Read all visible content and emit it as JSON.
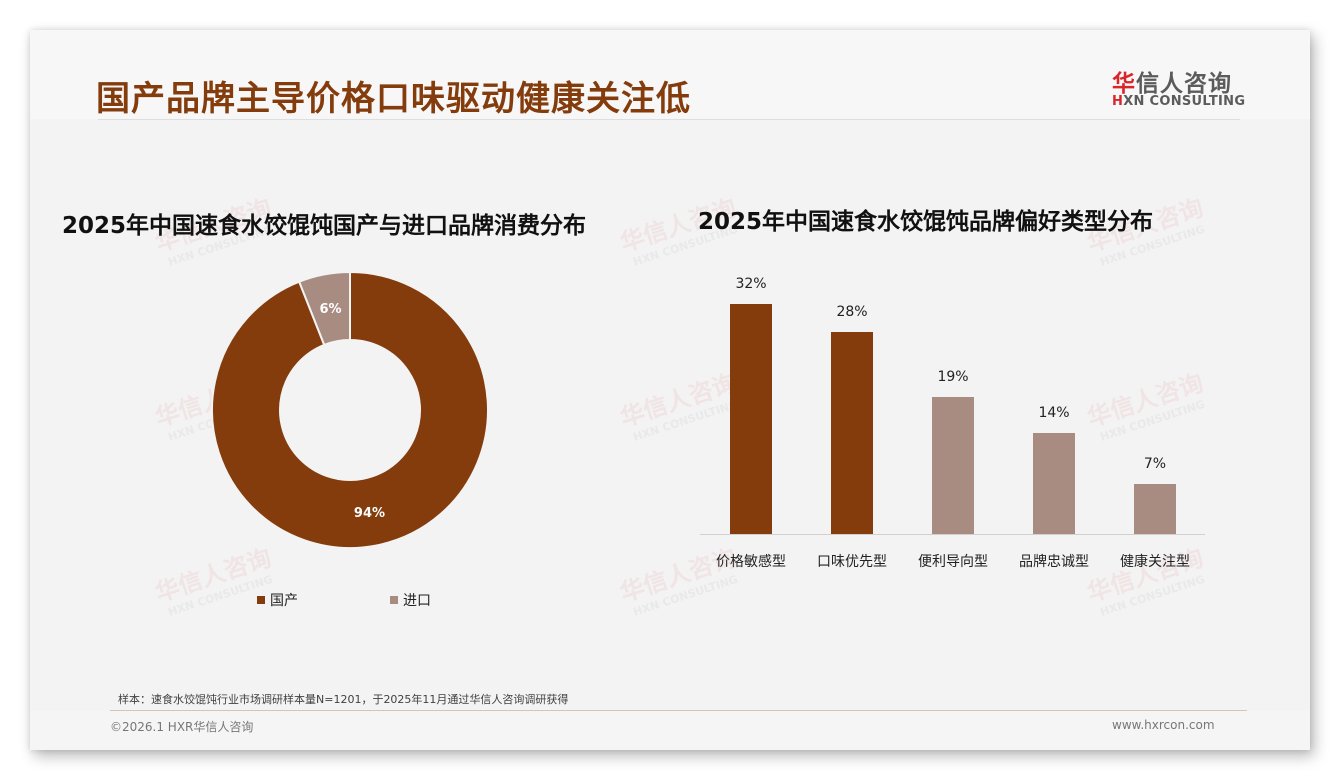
{
  "header": {
    "title": "国产品牌主导价格口味驱动健康关注低",
    "logo": {
      "cn_mark": "华",
      "cn_rest": "信人咨询",
      "en_mark": "H",
      "en_rest": "XN CONSULTING"
    }
  },
  "watermark": {
    "cn": "华信人咨询",
    "en": "HXN CONSULTING"
  },
  "colors": {
    "primary": "#843c0c",
    "secondary": "#a88c82",
    "title": "#843c0c",
    "logo_red": "#d7262b"
  },
  "left_chart": {
    "title": "2025年中国速食水饺馄饨国产与进口品牌消费分布",
    "slices": [
      {
        "label": "国产",
        "value": 94,
        "display": "94%",
        "color": "#843c0c"
      },
      {
        "label": "进口",
        "value": 6,
        "display": "6%",
        "color": "#a88c82"
      }
    ],
    "legend": [
      {
        "label": "国产",
        "color": "#843c0c"
      },
      {
        "label": "进口",
        "color": "#a88c82"
      }
    ]
  },
  "right_chart": {
    "title": "2025年中国速食水饺馄饨品牌偏好类型分布",
    "bars": [
      {
        "category": "价格敏感型",
        "value": 32,
        "display": "32%",
        "color": "#843c0c"
      },
      {
        "category": "口味优先型",
        "value": 28,
        "display": "28%",
        "color": "#843c0c"
      },
      {
        "category": "便利导向型",
        "value": 19,
        "display": "19%",
        "color": "#a88c82"
      },
      {
        "category": "品牌忠诚型",
        "value": 14,
        "display": "14%",
        "color": "#a88c82"
      },
      {
        "category": "健康关注型",
        "value": 7,
        "display": "7%",
        "color": "#a88c82"
      }
    ]
  },
  "chart_data": [
    {
      "type": "pie",
      "subtype": "donut",
      "title": "2025年中国速食水饺馄饨国产与进口品牌消费分布",
      "categories": [
        "国产",
        "进口"
      ],
      "values": [
        94,
        6
      ],
      "unit": "%",
      "legend_position": "bottom",
      "data_labels": [
        "94%",
        "6%"
      ]
    },
    {
      "type": "bar",
      "title": "2025年中国速食水饺馄饨品牌偏好类型分布",
      "categories": [
        "价格敏感型",
        "口味优先型",
        "便利导向型",
        "品牌忠诚型",
        "健康关注型"
      ],
      "values": [
        32,
        28,
        19,
        14,
        7
      ],
      "unit": "%",
      "xlabel": "",
      "ylabel": "",
      "ylim": [
        0,
        35
      ],
      "grid": false,
      "data_labels": [
        "32%",
        "28%",
        "19%",
        "14%",
        "7%"
      ]
    }
  ],
  "footer": {
    "note": "样本：速食水饺馄饨行业市场调研样本量N=1201，于2025年11月通过华信人咨询调研获得",
    "copyright": "©2026.1 HXR华信人咨询",
    "url": "www.hxrcon.com"
  }
}
